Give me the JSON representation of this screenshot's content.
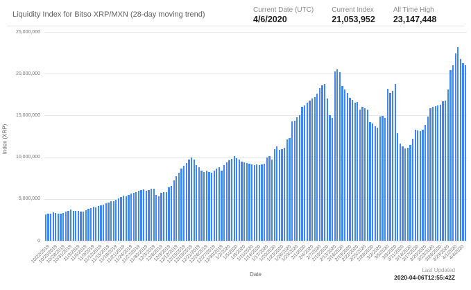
{
  "header": {
    "title": "Liquidity Index for Bitso XRP/MXN (28-day moving trend)",
    "stats": [
      {
        "label": "Current Date (UTC)",
        "value": "4/6/2020"
      },
      {
        "label": "Current Index",
        "value": "21,053,952"
      },
      {
        "label": "All Time High",
        "value": "23,147,448"
      }
    ]
  },
  "footer": {
    "last_updated_label": "Last Updated",
    "last_updated_value": "2020-04-06T12:55:42Z"
  },
  "colors": {
    "bar": "#4285f4",
    "grid": "#e6e6e6",
    "axis_label": "#757575",
    "value_text": "#1d1d1d"
  },
  "chart_data": {
    "type": "bar",
    "title": "Liquidity Index for Bitso XRP/MXN (28-day moving trend)",
    "xlabel": "Date",
    "ylabel": "Index (XRP)",
    "ylim": [
      0,
      25000000
    ],
    "grid": true,
    "legend": "none",
    "y_tick_values": [
      0,
      5000000,
      10000000,
      15000000,
      20000000,
      25000000
    ],
    "y_tick_labels": [
      "0",
      "5,000,000",
      "10,000,000",
      "15,000,000",
      "20,000,000",
      "25,000,000"
    ],
    "x_start": "10/22/2019",
    "x_end": "4/6/2020",
    "frequency": "daily",
    "x_tick_every": 3,
    "x_tick_labels": [
      "10/22/2019",
      "10/25/2019",
      "10/28/2019",
      "10/31/2019",
      "11/3/2019",
      "11/6/2019",
      "11/9/2019",
      "11/12/2019",
      "11/15/2019",
      "11/18/2019",
      "11/21/2019",
      "11/24/2019",
      "11/27/2019",
      "11/30/2019",
      "12/3/2019",
      "12/6/2019",
      "12/9/2019",
      "12/12/2019",
      "12/15/2019",
      "12/18/2019",
      "12/21/2019",
      "12/24/2019",
      "12/27/2019",
      "12/30/2019",
      "1/2/2020",
      "1/5/2020",
      "1/8/2020",
      "1/11/2020",
      "1/14/2020",
      "1/17/2020",
      "1/20/2020",
      "1/23/2020",
      "1/26/2020",
      "1/29/2020",
      "2/1/2020",
      "2/4/2020",
      "2/7/2020",
      "2/10/2020",
      "2/13/2020",
      "2/16/2020",
      "2/19/2020",
      "2/22/2020",
      "2/25/2020",
      "2/28/2020",
      "3/2/2020",
      "3/5/2020",
      "3/8/2020",
      "3/11/2020",
      "3/14/2020",
      "3/17/2020",
      "3/20/2020",
      "3/23/2020",
      "3/26/2020",
      "3/29/2020",
      "4/1/2020",
      "4/4/2020"
    ],
    "values": [
      3150000,
      3200000,
      3250000,
      3400000,
      3350000,
      3250000,
      3200000,
      3350000,
      3500000,
      3600000,
      3700000,
      3600000,
      3550000,
      3550000,
      3500000,
      3500000,
      3650000,
      3800000,
      3900000,
      4050000,
      4000000,
      4150000,
      4200000,
      4350000,
      4450000,
      4600000,
      4700000,
      4750000,
      4900000,
      5100000,
      5250000,
      5400000,
      5300000,
      5500000,
      5650000,
      5750000,
      5850000,
      5950000,
      6050000,
      6150000,
      6000000,
      6100000,
      6250000,
      6200000,
      5500000,
      5300000,
      5700000,
      5850000,
      5800000,
      6400000,
      6600000,
      7250000,
      7750000,
      8100000,
      8600000,
      9000000,
      9300000,
      9700000,
      9950000,
      9750000,
      9050000,
      8800000,
      8350000,
      8200000,
      8350000,
      8200000,
      8100000,
      8400000,
      8600000,
      8800000,
      8400000,
      9050000,
      9400000,
      9600000,
      9800000,
      10100000,
      9900000,
      9750000,
      9500000,
      9400000,
      9300000,
      9250000,
      9150000,
      9050000,
      9150000,
      9050000,
      9150000,
      9250000,
      9950000,
      10150000,
      9700000,
      11000000,
      11300000,
      10900000,
      11000000,
      11150000,
      12100000,
      12300000,
      14250000,
      14400000,
      14800000,
      15000000,
      16000000,
      16200000,
      16500000,
      16750000,
      17000000,
      17200000,
      17600000,
      18300000,
      18600000,
      18800000,
      17000000,
      15000000,
      14700000,
      20300000,
      20500000,
      20200000,
      18500000,
      18100000,
      17700000,
      17100000,
      16900000,
      16500000,
      16600000,
      15700000,
      16000000,
      15900000,
      15700000,
      14200000,
      14000000,
      13700000,
      13550000,
      14900000,
      14950000,
      14700000,
      18200000,
      17700000,
      17900000,
      18800000,
      12900000,
      11600000,
      11300000,
      11050000,
      11100000,
      11500000,
      12200000,
      13300000,
      13200000,
      13100000,
      13250000,
      13850000,
      14900000,
      15900000,
      16050000,
      16100000,
      16200000,
      16300000,
      16700000,
      16800000,
      18100000,
      20400000,
      21000000,
      22400000,
      23147448,
      21800000,
      21300000,
      21053952
    ]
  }
}
